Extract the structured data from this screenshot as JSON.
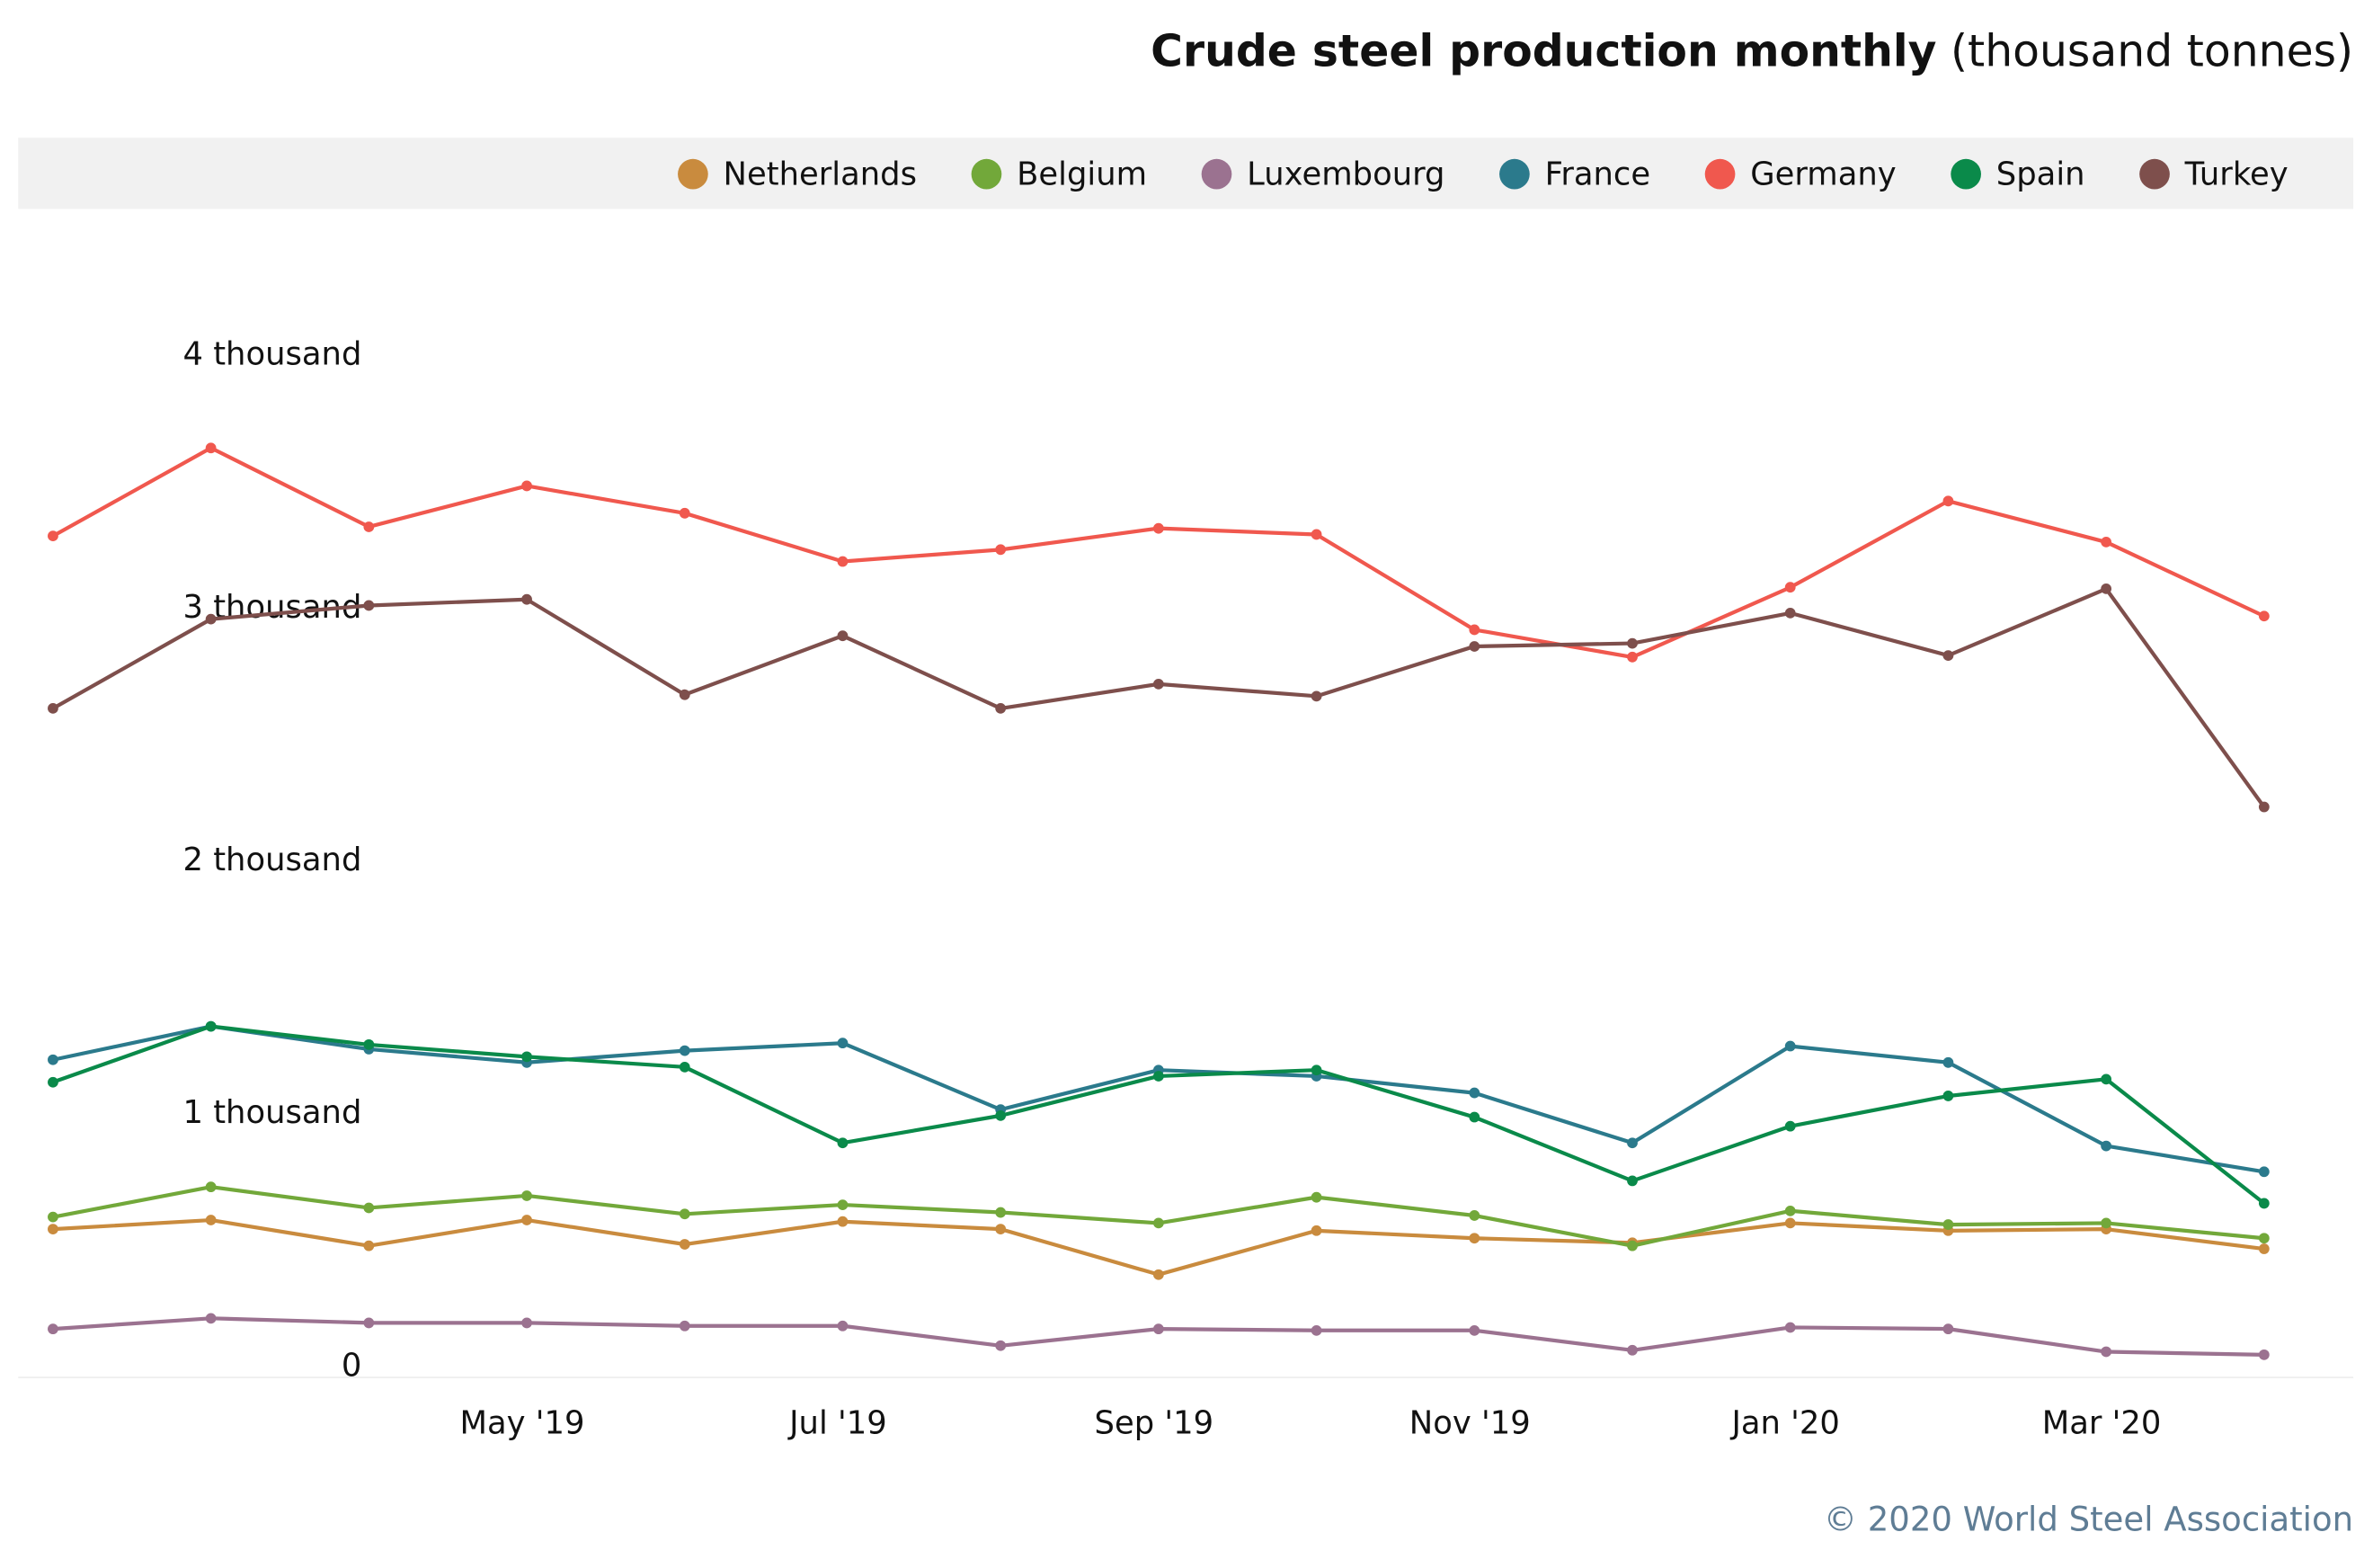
{
  "chart_data": {
    "type": "line",
    "title": "Crude steel production monthly",
    "subtitle": "(thousand tonnes)",
    "credits": "© 2020 World Steel Association",
    "x": [
      "2019-02",
      "2019-03",
      "2019-04",
      "2019-05",
      "2019-06",
      "2019-07",
      "2019-08",
      "2019-09",
      "2019-10",
      "2019-11",
      "2019-12",
      "2020-01",
      "2020-02",
      "2020-03",
      "2020-04"
    ],
    "xticks": [
      {
        "value": "2019-05",
        "label": "May '19"
      },
      {
        "value": "2019-07",
        "label": "Jul '19"
      },
      {
        "value": "2019-09",
        "label": "Sep '19"
      },
      {
        "value": "2019-11",
        "label": "Nov '19"
      },
      {
        "value": "2020-01",
        "label": "Jan '20"
      },
      {
        "value": "2020-03",
        "label": "Mar '20"
      }
    ],
    "ylim": [
      0,
      4500
    ],
    "yticks": [
      0,
      {
        "value": 1000,
        "label": "1 thousand"
      },
      {
        "value": 2000,
        "label": "2 thousand"
      },
      {
        "value": 3000,
        "label": "3 thousand"
      },
      {
        "value": 4000,
        "label": "4 thousand"
      }
    ],
    "grid": false,
    "legend": "top",
    "series": [
      {
        "name": "Netherlands",
        "color": "#c98b3e",
        "values": [
          587,
          623,
          521,
          623,
          527,
          617,
          587,
          407,
          581,
          551,
          533,
          611,
          581,
          587,
          509
        ]
      },
      {
        "name": "Belgium",
        "color": "#72a83a",
        "values": [
          635,
          754,
          671,
          719,
          647,
          683,
          653,
          611,
          713,
          641,
          521,
          659,
          605,
          611,
          551
        ]
      },
      {
        "name": "Luxembourg",
        "color": "#9b7290",
        "values": [
          192,
          234,
          216,
          216,
          204,
          204,
          126,
          192,
          186,
          186,
          108,
          198,
          192,
          102,
          90
        ]
      },
      {
        "name": "France",
        "color": "#2b7a8c",
        "values": [
          1257,
          1389,
          1299,
          1246,
          1293,
          1323,
          1060,
          1216,
          1192,
          1126,
          928,
          1311,
          1246,
          916,
          814
        ]
      },
      {
        "name": "Germany",
        "color": "#f0584e",
        "values": [
          3329,
          3677,
          3365,
          3527,
          3419,
          3228,
          3275,
          3359,
          3335,
          2958,
          2850,
          3126,
          3467,
          3305,
          3012
        ]
      },
      {
        "name": "Spain",
        "color": "#0a8a4a",
        "values": [
          1168,
          1389,
          1317,
          1269,
          1228,
          928,
          1036,
          1192,
          1216,
          1030,
          778,
          994,
          1114,
          1180,
          689
        ]
      },
      {
        "name": "Turkey",
        "color": "#7e4f4c",
        "values": [
          2647,
          3000,
          3054,
          3078,
          2701,
          2934,
          2647,
          2743,
          2695,
          2892,
          2904,
          3024,
          2856,
          3120,
          2257
        ]
      }
    ]
  }
}
